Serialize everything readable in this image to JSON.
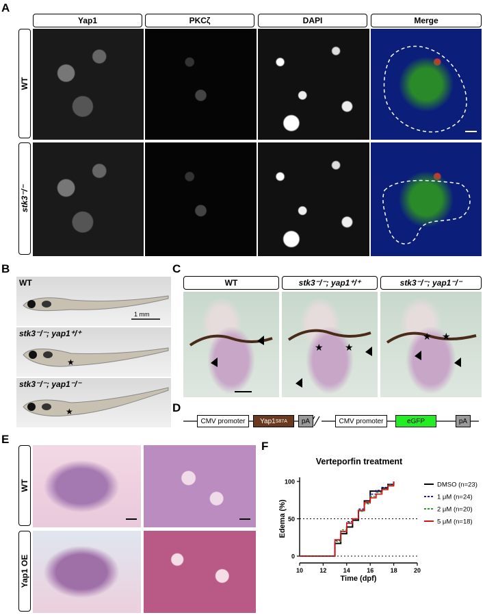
{
  "panels": {
    "a": "A",
    "b": "B",
    "c": "C",
    "d": "D",
    "e": "E",
    "f": "F"
  },
  "panelA": {
    "columns": [
      "Yap1",
      "PKCζ",
      "DAPI",
      "Merge"
    ],
    "rows": [
      "WT",
      "stk3⁻/⁻"
    ]
  },
  "panelB": {
    "labels": [
      "WT",
      "stk3⁻/⁻; yap1⁺/⁺",
      "stk3⁻/⁻; yap1⁻/⁻"
    ],
    "scalebar": "1 mm",
    "star": "★"
  },
  "panelC": {
    "columns": [
      "WT",
      "stk3⁻/⁻; yap1⁺/⁺",
      "stk3⁻/⁻; yap1⁻/⁻"
    ]
  },
  "panelD": {
    "promoter1": "CMV promoter",
    "gene1": "Yap1",
    "gene1_sup": "S87A",
    "pa1": "pA",
    "promoter2": "CMV promoter",
    "gene2": "eGFP",
    "pa2": "pA",
    "colors": {
      "yap1": "#6b3a1e",
      "egfp": "#22ee22",
      "pa": "#9a9a9a"
    }
  },
  "panelE": {
    "rows": [
      "WT",
      "Yap1 OE"
    ]
  },
  "chart_data": {
    "type": "line",
    "title": "Verteporfin treatment",
    "xlabel": "Time (dpf)",
    "ylabel": "Edema (%)",
    "xlim": [
      10,
      20
    ],
    "ylim": [
      0,
      100
    ],
    "xticks": [
      10,
      12,
      14,
      16,
      18,
      20
    ],
    "yticks": [
      0,
      50,
      100
    ],
    "reference_lines": [
      0,
      50
    ],
    "legend_position": "right",
    "series": [
      {
        "name": "DMSO (n=23)",
        "color": "#000000",
        "dash": "solid",
        "x": [
          10,
          12.5,
          13,
          13.5,
          14,
          14.5,
          15,
          15.5,
          16,
          16.5,
          17,
          17.5,
          18
        ],
        "y": [
          0,
          0,
          17,
          30,
          39,
          48,
          61,
          74,
          87,
          87,
          91,
          96,
          100
        ]
      },
      {
        "name": "1 μM (n=24)",
        "color": "#1a1aa0",
        "dash": "dash",
        "x": [
          10,
          12.5,
          13,
          13.5,
          14,
          14.5,
          15,
          15.5,
          16,
          16.5,
          17,
          17.5,
          18
        ],
        "y": [
          0,
          0,
          21,
          33,
          46,
          50,
          63,
          71,
          83,
          88,
          92,
          96,
          100
        ]
      },
      {
        "name": "2 μM (n=20)",
        "color": "#2e9a2e",
        "dash": "dash",
        "x": [
          10,
          12.5,
          13,
          13.5,
          14,
          14.5,
          15,
          15.5,
          16,
          16.5,
          17,
          17.5,
          18
        ],
        "y": [
          0,
          0,
          20,
          35,
          45,
          50,
          60,
          70,
          80,
          85,
          90,
          95,
          100
        ]
      },
      {
        "name": "5 μM (n=18)",
        "color": "#e01010",
        "dash": "solid",
        "x": [
          10,
          12.5,
          13,
          13.5,
          14,
          14.5,
          15,
          15.5,
          16,
          16.5,
          17,
          17.5,
          18
        ],
        "y": [
          0,
          0,
          22,
          33,
          44,
          50,
          61,
          72,
          78,
          83,
          89,
          94,
          100
        ]
      }
    ]
  }
}
